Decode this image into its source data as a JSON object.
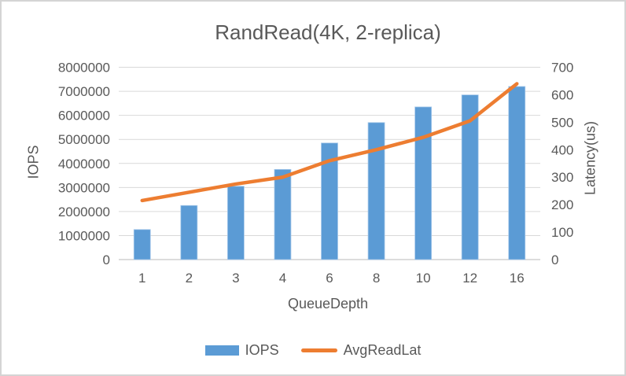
{
  "window": {
    "background": "#ffffff",
    "border_color": "#d4d4d4"
  },
  "chart_data": {
    "type": "combo",
    "title": "RandRead(4K, 2-replica)",
    "xlabel": "QueueDepth",
    "categories": [
      "1",
      "2",
      "3",
      "4",
      "6",
      "8",
      "10",
      "12",
      "16"
    ],
    "left_axis": {
      "label": "IOPS",
      "min": 0,
      "max": 8000000,
      "step": 1000000,
      "tick_labels": [
        "0",
        "1000000",
        "2000000",
        "3000000",
        "4000000",
        "5000000",
        "6000000",
        "7000000",
        "8000000"
      ]
    },
    "right_axis": {
      "label": "Latency(us)",
      "min": 0,
      "max": 700,
      "step": 100,
      "tick_labels": [
        "0",
        "100",
        "200",
        "300",
        "400",
        "500",
        "600",
        "700"
      ]
    },
    "series": [
      {
        "name": "IOPS",
        "type": "bar",
        "axis": "left",
        "color": "#5B9BD5",
        "values": [
          1250000,
          2250000,
          3050000,
          3750000,
          4850000,
          5700000,
          6350000,
          6850000,
          7200000
        ]
      },
      {
        "name": "AvgReadLat",
        "type": "line",
        "axis": "right",
        "color": "#ED7D31",
        "values": [
          215,
          245,
          275,
          300,
          360,
          400,
          445,
          505,
          640
        ]
      }
    ],
    "grid": true,
    "gridline_color": "#d9d9d9",
    "axis_line_color": "#c6c6c6",
    "text_color": "#595959",
    "legend_position": "bottom"
  }
}
